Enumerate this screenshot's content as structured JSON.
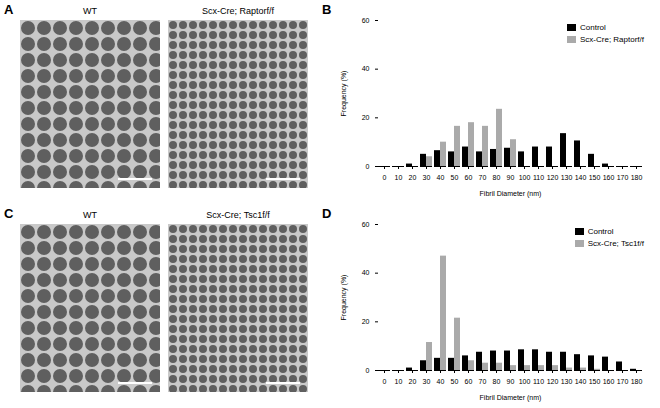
{
  "panels": [
    {
      "letter": "A",
      "images": [
        "WT",
        "Scx-Cre; Raptorf/f"
      ]
    },
    {
      "letter": "C",
      "images": [
        "WT",
        "Scx-Cre; Tsc1f/f"
      ]
    }
  ],
  "chart_data": [
    {
      "letter": "B",
      "type": "bar",
      "xlabel": "Fibril Diameter (nm)",
      "ylabel": "Frequency (%)",
      "categories": [
        0,
        10,
        20,
        30,
        40,
        50,
        60,
        70,
        80,
        90,
        100,
        110,
        120,
        130,
        140,
        150,
        160,
        170,
        180
      ],
      "series": [
        {
          "name": "Control",
          "color": "#000000",
          "values": [
            0,
            0,
            1,
            5,
            6.5,
            6,
            8,
            6,
            7,
            7.5,
            6,
            8,
            8,
            13.5,
            10.5,
            5,
            1,
            0,
            0
          ]
        },
        {
          "name": "Scx-Cre; Raptorf/f",
          "color": "#aaaaaa",
          "values": [
            0,
            0,
            0,
            4,
            10,
            16.5,
            18,
            16.5,
            23.5,
            11,
            0,
            0,
            0,
            0,
            0,
            0,
            0,
            0,
            0
          ]
        }
      ],
      "ylim": [
        0,
        60
      ],
      "yticks": [
        0,
        20,
        40,
        60
      ],
      "legend": "top-right"
    },
    {
      "letter": "D",
      "type": "bar",
      "xlabel": "Fibril Diameter (nm)",
      "ylabel": "Frequency (%)",
      "categories": [
        0,
        10,
        20,
        30,
        40,
        50,
        60,
        70,
        80,
        90,
        100,
        110,
        120,
        130,
        140,
        150,
        160,
        170,
        180
      ],
      "series": [
        {
          "name": "Control",
          "color": "#000000",
          "values": [
            0,
            0,
            1,
            4,
            5,
            5,
            6,
            7.5,
            8,
            8,
            8.5,
            8.5,
            7.5,
            7.5,
            6.5,
            6,
            5.5,
            3.5,
            0.5
          ]
        },
        {
          "name": "Scx-Cre; Tsc1f/f",
          "color": "#aaaaaa",
          "values": [
            0,
            0,
            0,
            11.5,
            47,
            21.5,
            4,
            3,
            3,
            2,
            2,
            2,
            2,
            1,
            1,
            0.5,
            0,
            0,
            0
          ]
        }
      ],
      "ylim": [
        0,
        60
      ],
      "yticks": [
        0,
        20,
        40,
        60
      ],
      "legend": "top-right"
    }
  ]
}
